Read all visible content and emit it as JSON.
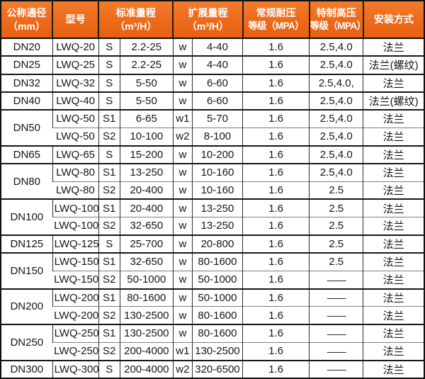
{
  "colors": {
    "header_bg": "#ee6c1c",
    "header_bg_top": "#f37c2e",
    "header_bg_bottom": "#e66110",
    "header_text": "#ffffff",
    "body_text": "#161616",
    "grid_line": "#2b2b2b",
    "group_separator": "#161616",
    "sub_row_separator": "#7d7d7d",
    "body_bg": "#ffffff"
  },
  "table": {
    "header": {
      "diameter": {
        "l1": "公称通径",
        "l2": "（mm）"
      },
      "model": {
        "l1": "型号",
        "l2": ""
      },
      "standard": {
        "l1": "标准量程",
        "l2": "（m³/H）"
      },
      "extended": {
        "l1": "扩展量程",
        "l2": "（m³/H）"
      },
      "pressure": {
        "l1": "常规耐压",
        "l2": "等级（MPA）"
      },
      "high_pressure": {
        "l1": "特制高压",
        "l2": "等级（MPA）"
      },
      "install": {
        "l1": "安装方式",
        "l2": ""
      }
    },
    "groups": [
      {
        "dn": "DN20",
        "rows": [
          {
            "model": "LWQ-20",
            "s": "S",
            "std": "2.2-25",
            "w": "w",
            "ext": "4-40",
            "p": "1.6",
            "hp": "2.5,4.0",
            "install": "法兰"
          }
        ]
      },
      {
        "dn": "DN25",
        "rows": [
          {
            "model": "LWQ-25",
            "s": "S",
            "std": "2.2-25",
            "w": "w",
            "ext": "4-40",
            "p": "1.6",
            "hp": "2.5,4.0",
            "install": "法兰(螺纹)"
          }
        ]
      },
      {
        "dn": "DN32",
        "rows": [
          {
            "model": "LWQ-32",
            "s": "S",
            "std": "5-50",
            "w": "w",
            "ext": "6-60",
            "p": "1.6",
            "hp": "2.5,4.0,",
            "install": "法兰"
          }
        ]
      },
      {
        "dn": "DN40",
        "rows": [
          {
            "model": "LWQ-40",
            "s": "S",
            "std": "5-50",
            "w": "w",
            "ext": "6-60",
            "p": "1.6",
            "hp": "2.5,4.0",
            "install": "法兰(螺纹)"
          }
        ]
      },
      {
        "dn": "DN50",
        "rows": [
          {
            "model": "LWQ-50",
            "s": "S1",
            "std": "6-65",
            "w": "w1",
            "ext": "5-70",
            "p": "1.6",
            "hp": "2.5,4.0",
            "install": "法兰"
          },
          {
            "model": "LWQ-50",
            "s": "S2",
            "std": "10-100",
            "w": "w2",
            "ext": "8-100",
            "p": "1.6",
            "hp": "2.5,4.0",
            "install": "法兰"
          }
        ]
      },
      {
        "dn": "DN65",
        "rows": [
          {
            "model": "LWQ-65",
            "s": "S",
            "std": "15-200",
            "w": "w",
            "ext": "10-200",
            "p": "1.6",
            "hp": "2.5,4.0",
            "install": "法兰"
          }
        ]
      },
      {
        "dn": "DN80",
        "rows": [
          {
            "model": "LWQ-80",
            "s": "S1",
            "std": "13-250",
            "w": "w",
            "ext": "10-160",
            "p": "1.6",
            "hp": "2.5,4.0",
            "install": "法兰"
          },
          {
            "model": "LWQ-80",
            "s": "S2",
            "std": "20-400",
            "w": "w",
            "ext": "10-160",
            "p": "1.6",
            "hp": "2.5",
            "install": "法兰"
          }
        ]
      },
      {
        "dn": "DN100",
        "rows": [
          {
            "model": "LWQ-100",
            "s": "S1",
            "std": "20-400",
            "w": "w",
            "ext": "13-250",
            "p": "1.6",
            "hp": "2.5",
            "install": "法兰"
          },
          {
            "model": "LWQ-100",
            "s": "S2",
            "std": "32-650",
            "w": "w",
            "ext": "13-250",
            "p": "1.6",
            "hp": "2.5",
            "install": "法兰"
          }
        ]
      },
      {
        "dn": "DN125",
        "rows": [
          {
            "model": "LWQ-125",
            "s": "S",
            "std": "25-700",
            "w": "w",
            "ext": "20-800",
            "p": "1.6",
            "hp": "2.5",
            "install": "法兰"
          }
        ]
      },
      {
        "dn": "DN150",
        "rows": [
          {
            "model": "LWQ-150",
            "s": "S1",
            "std": "32-650",
            "w": "w",
            "ext": "80-1600",
            "p": "1.6",
            "hp": "2.5",
            "install": "法兰"
          },
          {
            "model": "LWQ-150",
            "s": "S2",
            "std": "50-1000",
            "w": "w",
            "ext": "50-1000",
            "p": "1.6",
            "hp": "——",
            "install": "法兰"
          }
        ]
      },
      {
        "dn": "DN200",
        "rows": [
          {
            "model": "LWQ-200",
            "s": "S1",
            "std": "80-1600",
            "w": "w",
            "ext": "50-1000",
            "p": "1.6",
            "hp": "——",
            "install": "法兰"
          },
          {
            "model": "LWQ-200",
            "s": "S2",
            "std": "130-2500",
            "w": "w",
            "ext": "80-1600",
            "p": "1.6",
            "hp": "——",
            "install": "法兰"
          }
        ]
      },
      {
        "dn": "DN250",
        "rows": [
          {
            "model": "LWQ-250",
            "s": "S1",
            "std": "130-2500",
            "w": "w",
            "ext": "80-1600",
            "p": "1.6",
            "hp": "——",
            "install": "法兰"
          },
          {
            "model": "LWQ-250",
            "s": "S2",
            "std": "200-4000",
            "w": "w1",
            "ext": "130-2500",
            "p": "1.6",
            "hp": "——",
            "install": "法兰"
          }
        ]
      },
      {
        "dn": "DN300",
        "rows": [
          {
            "model": "LWQ-300",
            "s": "S",
            "std": "200-4000",
            "w": "w2",
            "ext": "320-6500",
            "p": "1.6",
            "hp": "——",
            "install": "法兰"
          }
        ]
      }
    ]
  }
}
